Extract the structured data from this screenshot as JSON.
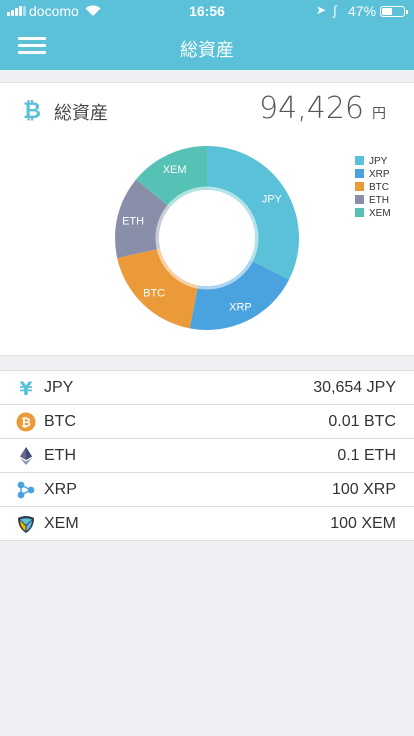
{
  "status_bar": {
    "carrier": "docomo",
    "time": "16:56",
    "battery_percent": "47%",
    "battery_level": 0.47
  },
  "header": {
    "title": "総資産",
    "menu_icon": "hamburger-menu-icon"
  },
  "summary": {
    "label": "総資産",
    "value": "94,426",
    "unit": "円",
    "icon": "bitcoin-icon"
  },
  "colors": {
    "header": "#5ac1d8",
    "JPY": "#5ac1d8",
    "XRP": "#4aa3df",
    "BTC": "#eb9a3a",
    "ETH": "#8a8fa9",
    "XEM": "#55c2b5"
  },
  "chart_data": {
    "type": "pie",
    "donut": true,
    "legend_position": "top-right",
    "categories": [
      "JPY",
      "XRP",
      "BTC",
      "ETH",
      "XEM"
    ],
    "values": [
      32.5,
      20.5,
      18.5,
      14.5,
      14
    ],
    "legend": [
      "JPY",
      "XRP",
      "BTC",
      "ETH",
      "XEM"
    ]
  },
  "assets": [
    {
      "name": "JPY",
      "amount": "30,654 JPY",
      "icon": "yen-icon"
    },
    {
      "name": "BTC",
      "amount": "0.01 BTC",
      "icon": "bitcoin-icon"
    },
    {
      "name": "ETH",
      "amount": "0.1 ETH",
      "icon": "ethereum-icon"
    },
    {
      "name": "XRP",
      "amount": "100 XRP",
      "icon": "ripple-icon"
    },
    {
      "name": "XEM",
      "amount": "100 XEM",
      "icon": "nem-icon"
    }
  ]
}
